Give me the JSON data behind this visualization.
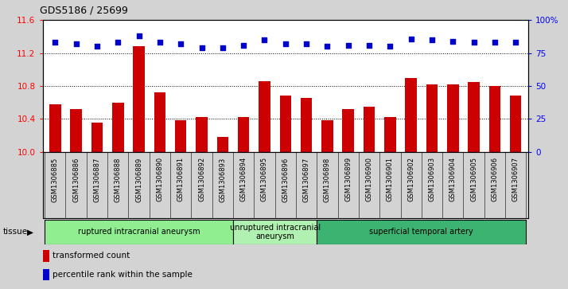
{
  "title": "GDS5186 / 25699",
  "samples": [
    "GSM1306885",
    "GSM1306886",
    "GSM1306887",
    "GSM1306888",
    "GSM1306889",
    "GSM1306890",
    "GSM1306891",
    "GSM1306892",
    "GSM1306893",
    "GSM1306894",
    "GSM1306895",
    "GSM1306896",
    "GSM1306897",
    "GSM1306898",
    "GSM1306899",
    "GSM1306900",
    "GSM1306901",
    "GSM1306902",
    "GSM1306903",
    "GSM1306904",
    "GSM1306905",
    "GSM1306906",
    "GSM1306907"
  ],
  "bar_values": [
    10.58,
    10.52,
    10.35,
    10.6,
    11.28,
    10.72,
    10.38,
    10.42,
    10.18,
    10.42,
    10.86,
    10.68,
    10.65,
    10.38,
    10.52,
    10.55,
    10.42,
    10.9,
    10.82,
    10.82,
    10.85,
    10.8,
    10.68
  ],
  "percentile_values": [
    83,
    82,
    80,
    83,
    88,
    83,
    82,
    79,
    79,
    81,
    85,
    82,
    82,
    80,
    81,
    81,
    80,
    86,
    85,
    84,
    83,
    83,
    83
  ],
  "bar_color": "#cc0000",
  "percentile_color": "#0000cc",
  "ylim_left": [
    10.0,
    11.6
  ],
  "ylim_right": [
    0,
    100
  ],
  "yticks_left": [
    10.0,
    10.4,
    10.8,
    11.2,
    11.6
  ],
  "yticks_right": [
    0,
    25,
    50,
    75,
    100
  ],
  "ytick_labels_right": [
    "0",
    "25",
    "50",
    "75",
    "100%"
  ],
  "groups": [
    {
      "label": "ruptured intracranial aneurysm",
      "start": 0,
      "end": 9,
      "color": "#90ee90"
    },
    {
      "label": "unruptured intracranial\naneurysm",
      "start": 9,
      "end": 13,
      "color": "#b0f0b0"
    },
    {
      "label": "superficial temporal artery",
      "start": 13,
      "end": 23,
      "color": "#3cb371"
    }
  ],
  "tissue_label": "tissue",
  "legend_bar_label": "transformed count",
  "legend_dot_label": "percentile rank within the sample",
  "background_color": "#d3d3d3",
  "plot_bg_color": "#ffffff",
  "ticklabel_bg_color": "#d3d3d3"
}
